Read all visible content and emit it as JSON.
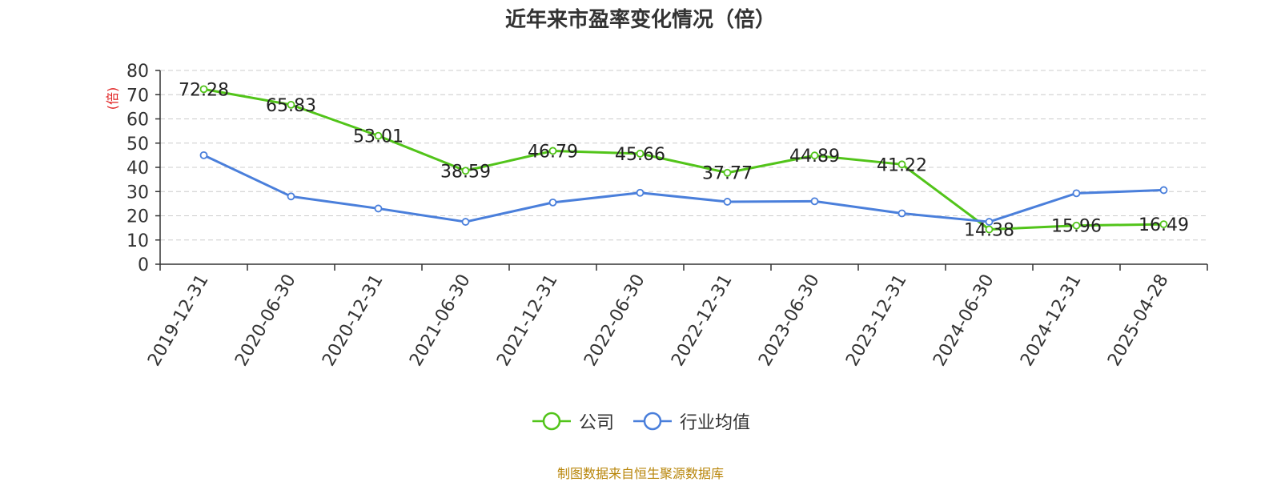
{
  "chart_data": {
    "type": "line",
    "title": "近年来市盈率变化情况（倍）",
    "ylabel": "(倍)",
    "xlabel": "",
    "categories": [
      "2019-12-31",
      "2020-06-30",
      "2020-12-31",
      "2021-06-30",
      "2021-12-31",
      "2022-06-30",
      "2022-12-31",
      "2023-06-30",
      "2023-12-31",
      "2024-06-30",
      "2024-12-31",
      "2025-04-28"
    ],
    "ylim": [
      0,
      80
    ],
    "yticks": [
      0,
      10,
      20,
      30,
      40,
      50,
      60,
      70,
      80
    ],
    "grid": true,
    "legend_position": "bottom",
    "series": [
      {
        "name": "公司",
        "color": "#52c41a",
        "show_labels": true,
        "values": [
          72.28,
          65.83,
          53.01,
          38.59,
          46.79,
          45.66,
          37.77,
          44.89,
          41.22,
          14.38,
          15.96,
          16.49
        ]
      },
      {
        "name": "行业均值",
        "color": "#4a7fdb",
        "show_labels": false,
        "values": [
          45.0,
          28.0,
          23.0,
          17.5,
          25.5,
          29.5,
          25.8,
          26.0,
          21.0,
          17.5,
          29.3,
          30.6
        ]
      }
    ],
    "source": "制图数据来自恒生聚源数据库"
  }
}
